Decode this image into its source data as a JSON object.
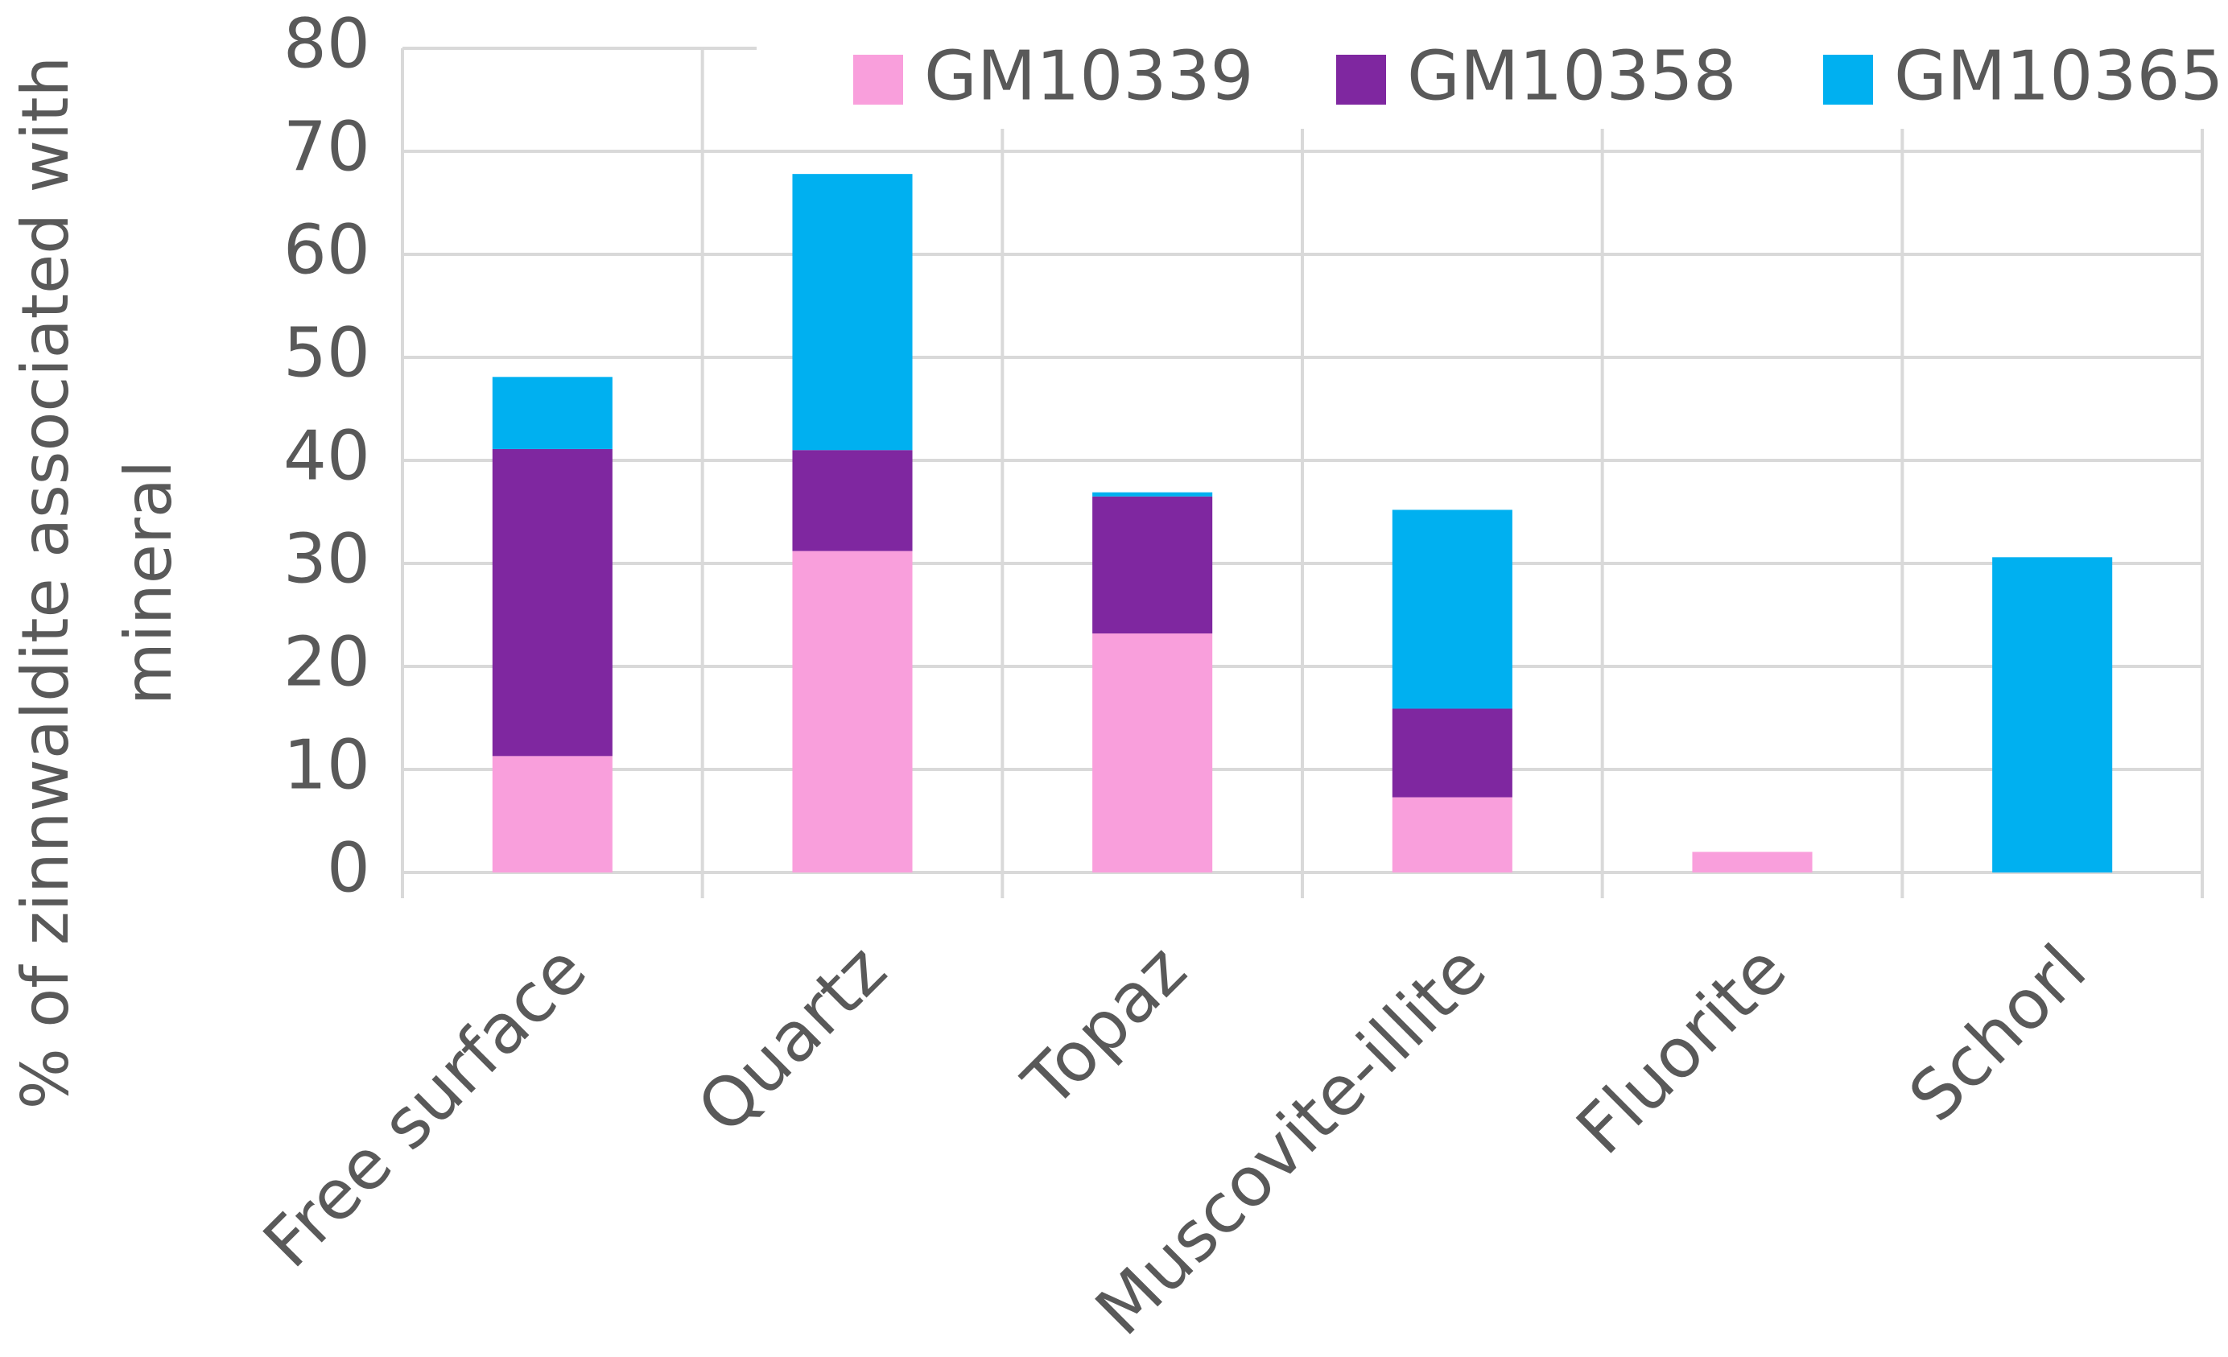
{
  "chart_data": {
    "type": "stacked_bar",
    "ylabel_lines": [
      "% of zinnwaldite associated with",
      "mineral"
    ],
    "categories": [
      "Free surface",
      "Quartz",
      "Topaz",
      "Muscovite-illite",
      "Fluorite",
      "Schorl"
    ],
    "series": [
      {
        "name": "GM10339",
        "color": "#f99fdc",
        "values": [
          11.3,
          31.2,
          23.2,
          7.3,
          2,
          0
        ]
      },
      {
        "name": "GM10358",
        "color": "#7f27a0",
        "values": [
          29.8,
          9.8,
          13.3,
          8.6,
          0,
          0
        ]
      },
      {
        "name": "GM10365",
        "color": "#00b0f0",
        "values": [
          7,
          26.8,
          0.4,
          19.3,
          0,
          30.6
        ]
      }
    ],
    "ylim": [
      0,
      80
    ],
    "yticks": [
      0,
      10,
      20,
      30,
      40,
      50,
      60,
      70,
      80
    ],
    "grid": true,
    "legend": "top-right"
  }
}
